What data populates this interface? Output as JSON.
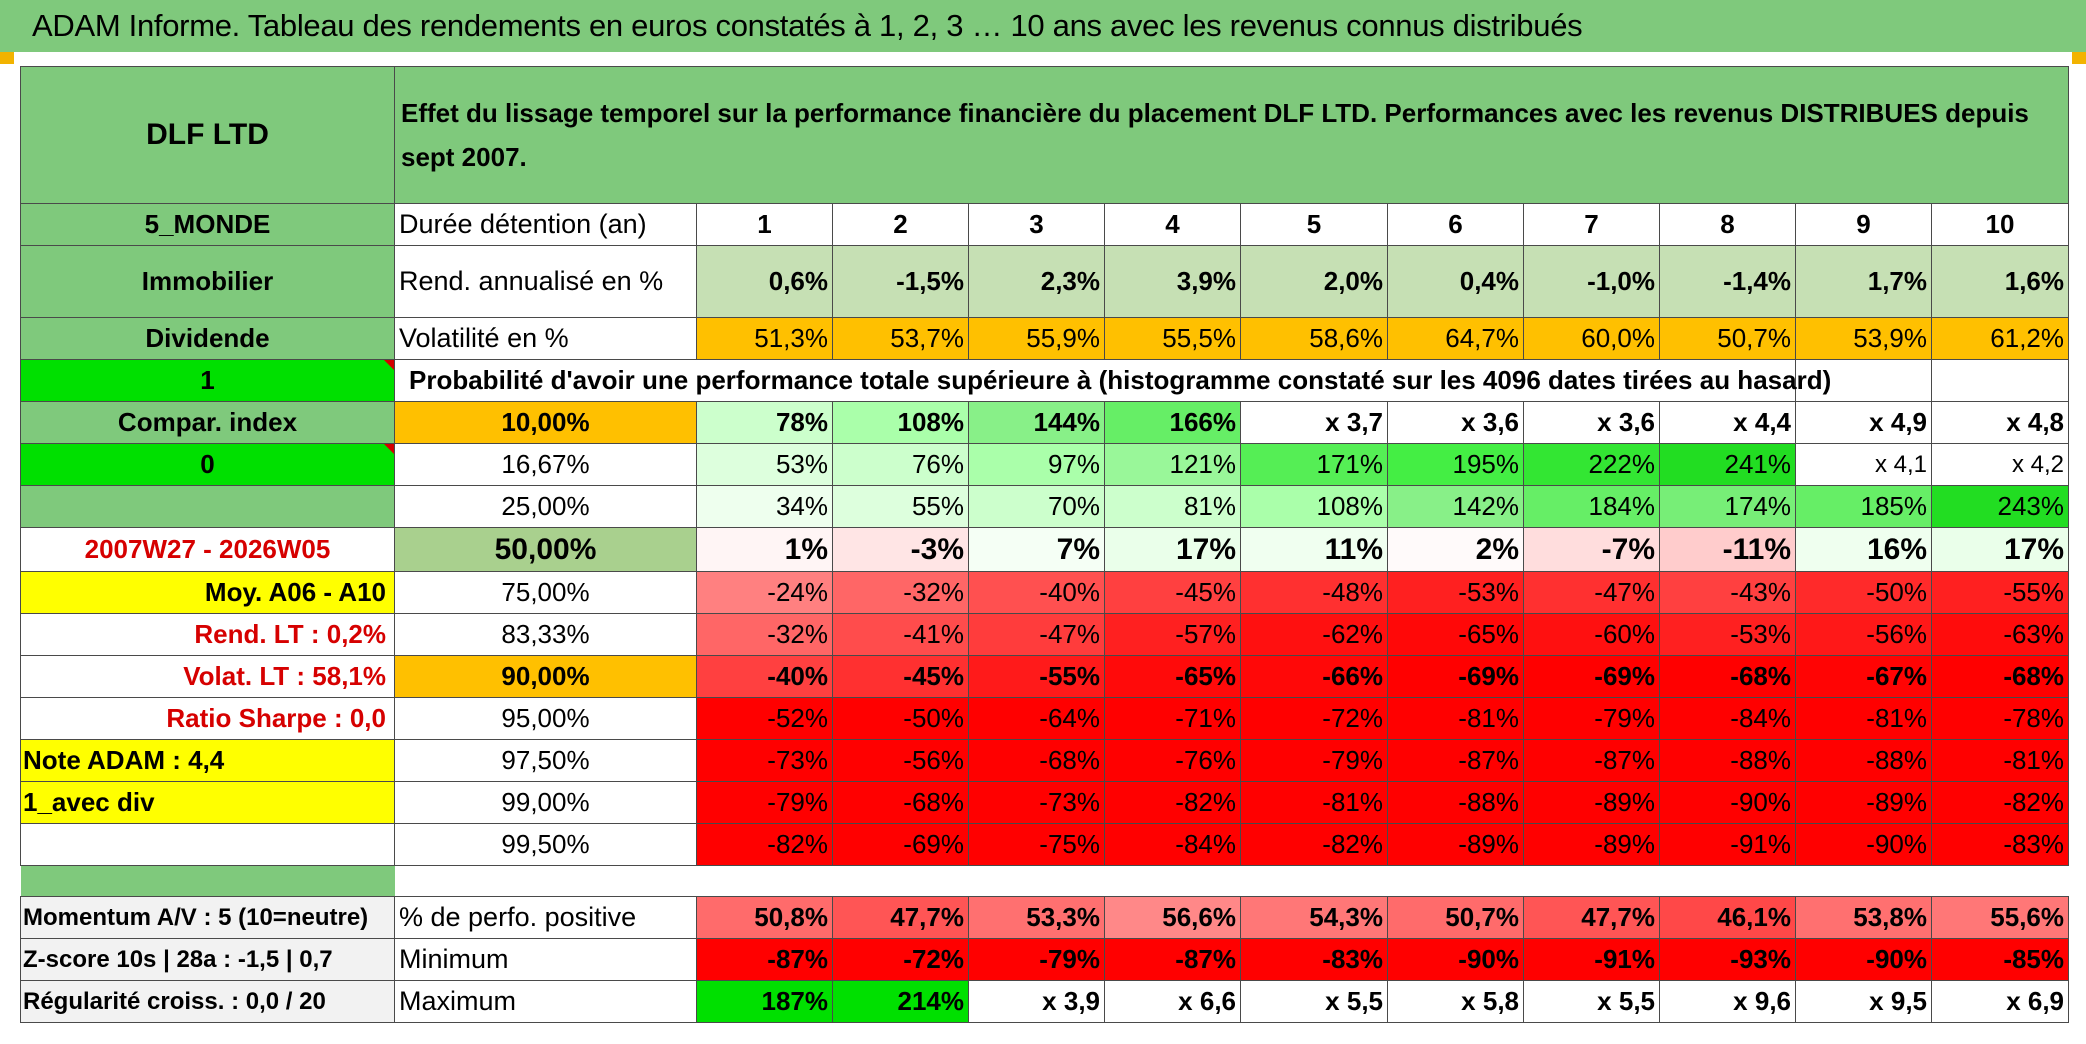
{
  "title": "ADAM Informe. Tableau des rendements en euros constatés à 1, 2, 3 … 10 ans avec les revenus connus distribués",
  "header": {
    "fund": "DLF LTD",
    "description": "Effet du lissage temporel sur la performance financière du placement DLF LTD. Performances avec les revenus DISTRIBUES depuis sept 2007."
  },
  "left_labels": {
    "zone": "5_MONDE",
    "category": "Immobilier",
    "type": "Dividende",
    "flag1": "1",
    "compar": "Compar. index",
    "flag0": "0",
    "period": "2007W27 - 2026W05",
    "moy": "Moy. A06 - A10",
    "rend_lt": "Rend. LT :   0,2%",
    "volat_lt": "Volat. LT :   58,1%",
    "sharpe": "Ratio Sharpe :    0,0",
    "note": "Note ADAM : 4,4",
    "avec_div": "1_avec div",
    "momentum": "Momentum A/V : 5 (10=neutre)",
    "zscore": "Z-score 10s | 28a : -1,5 | 0,7",
    "regularite": "Régularité croiss. : 0,0 / 20"
  },
  "duration": {
    "label": "Durée détention (an)",
    "years": [
      "1",
      "2",
      "3",
      "4",
      "5",
      "6",
      "7",
      "8",
      "9",
      "10"
    ]
  },
  "rend": {
    "label": "Rend. annualisé en %",
    "values": [
      "0,6%",
      "-1,5%",
      "2,3%",
      "3,9%",
      "2,0%",
      "0,4%",
      "-1,0%",
      "-1,4%",
      "1,7%",
      "1,6%"
    ]
  },
  "vol": {
    "label": "Volatilité en %",
    "values": [
      "51,3%",
      "53,7%",
      "55,9%",
      "55,5%",
      "58,6%",
      "64,7%",
      "60,0%",
      "50,7%",
      "53,9%",
      "61,2%"
    ]
  },
  "prob_label": "Probabilité d'avoir une performance totale supérieure à (histogramme constaté sur les 4096 dates tirées au hasard)",
  "quantiles": [
    {
      "pct": "10,00%",
      "values": [
        "78%",
        "108%",
        "144%",
        "166%",
        "x 3,7",
        "x 3,6",
        "x 3,6",
        "x 4,4",
        "x 4,9",
        "x 4,8"
      ]
    },
    {
      "pct": "16,67%",
      "values": [
        "53%",
        "76%",
        "97%",
        "121%",
        "171%",
        "195%",
        "222%",
        "241%",
        "x 4,1",
        "x 4,2"
      ]
    },
    {
      "pct": "25,00%",
      "values": [
        "34%",
        "55%",
        "70%",
        "81%",
        "108%",
        "142%",
        "184%",
        "174%",
        "185%",
        "243%"
      ]
    },
    {
      "pct": "50,00%",
      "values": [
        "1%",
        "-3%",
        "7%",
        "17%",
        "11%",
        "2%",
        "-7%",
        "-11%",
        "16%",
        "17%"
      ]
    },
    {
      "pct": "75,00%",
      "values": [
        "-24%",
        "-32%",
        "-40%",
        "-45%",
        "-48%",
        "-53%",
        "-47%",
        "-43%",
        "-50%",
        "-55%"
      ]
    },
    {
      "pct": "83,33%",
      "values": [
        "-32%",
        "-41%",
        "-47%",
        "-57%",
        "-62%",
        "-65%",
        "-60%",
        "-53%",
        "-56%",
        "-63%"
      ]
    },
    {
      "pct": "90,00%",
      "values": [
        "-40%",
        "-45%",
        "-55%",
        "-65%",
        "-66%",
        "-69%",
        "-69%",
        "-68%",
        "-67%",
        "-68%"
      ]
    },
    {
      "pct": "95,00%",
      "values": [
        "-52%",
        "-50%",
        "-64%",
        "-71%",
        "-72%",
        "-81%",
        "-79%",
        "-84%",
        "-81%",
        "-78%"
      ]
    },
    {
      "pct": "97,50%",
      "values": [
        "-73%",
        "-56%",
        "-68%",
        "-76%",
        "-79%",
        "-87%",
        "-87%",
        "-88%",
        "-88%",
        "-81%"
      ]
    },
    {
      "pct": "99,00%",
      "values": [
        "-79%",
        "-68%",
        "-73%",
        "-82%",
        "-81%",
        "-88%",
        "-89%",
        "-90%",
        "-89%",
        "-82%"
      ]
    },
    {
      "pct": "99,50%",
      "values": [
        "-82%",
        "-69%",
        "-75%",
        "-84%",
        "-82%",
        "-89%",
        "-89%",
        "-91%",
        "-90%",
        "-83%"
      ]
    }
  ],
  "stats": [
    {
      "label": "% de perfo. positive",
      "values": [
        "50,8%",
        "47,7%",
        "53,3%",
        "56,6%",
        "54,3%",
        "50,7%",
        "47,7%",
        "46,1%",
        "53,8%",
        "55,6%"
      ]
    },
    {
      "label": "Minimum",
      "values": [
        "-87%",
        "-72%",
        "-79%",
        "-87%",
        "-83%",
        "-90%",
        "-91%",
        "-93%",
        "-90%",
        "-85%"
      ]
    },
    {
      "label": "Maximum",
      "values": [
        "187%",
        "214%",
        "x 3,9",
        "x 6,6",
        "x 5,5",
        "x 5,8",
        "x 5,5",
        "x 9,6",
        "x 9,5",
        "x 6,9"
      ]
    }
  ],
  "colors": {
    "header_green": "#7fc97c",
    "bright_green": "#00e000",
    "yellow": "#ffff00",
    "orange": "#ffc000",
    "red_text": "#d60000",
    "light_green": "#c6e0b4",
    "deep_red": "#ff0000"
  }
}
